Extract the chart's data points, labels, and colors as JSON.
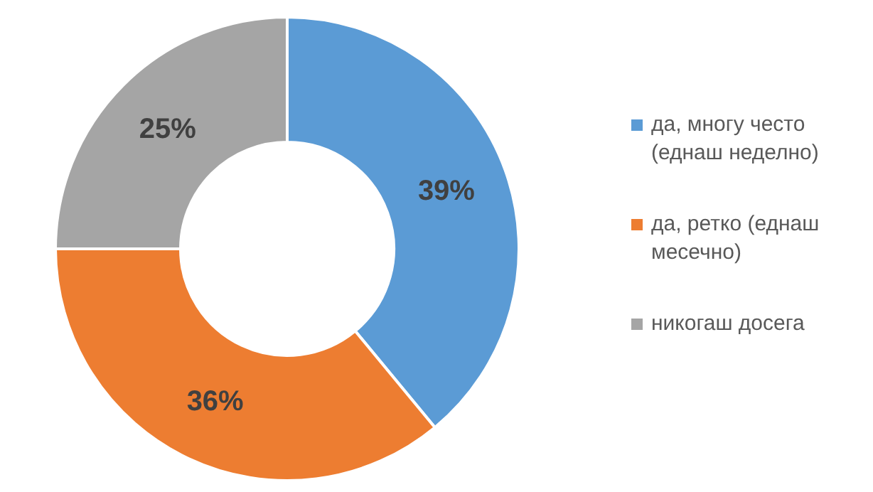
{
  "chart_data": {
    "type": "donut",
    "categories": [
      "да, многу често (еднаш неделно)",
      "да, ретко (еднаш месечно)",
      "никогаш досега"
    ],
    "values": [
      39,
      36,
      25
    ],
    "colors": [
      "#5b9bd5",
      "#ed7d31",
      "#a5a5a5"
    ],
    "value_labels": [
      "39%",
      "36%",
      "25%"
    ],
    "legend": "right"
  }
}
